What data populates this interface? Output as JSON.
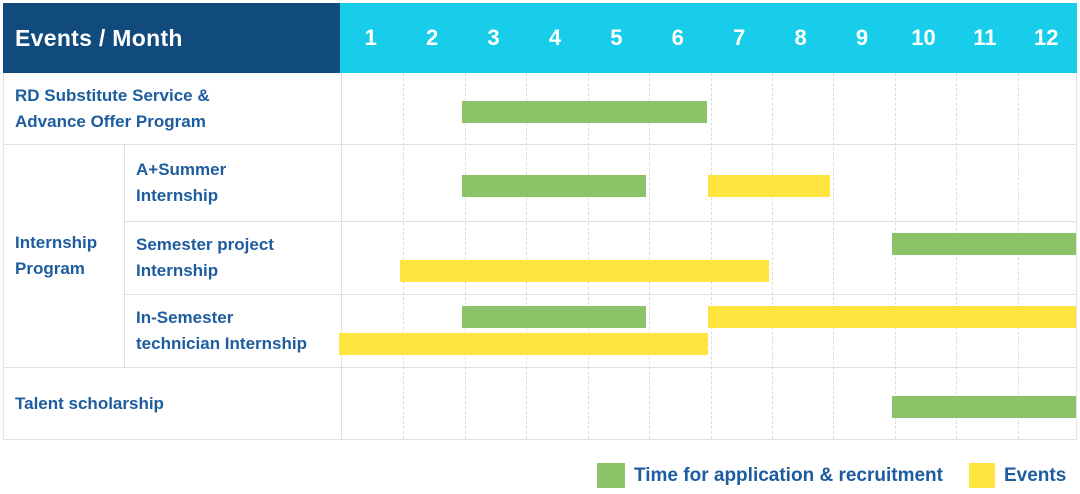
{
  "header": {
    "title": "Events / Month",
    "months": [
      "1",
      "2",
      "3",
      "4",
      "5",
      "6",
      "7",
      "8",
      "9",
      "10",
      "11",
      "12"
    ]
  },
  "colors": {
    "header_navy": "#114a7c",
    "header_cyan": "#17cde9",
    "label_blue": "#1d5c9e",
    "grid_line": "#dcdcdc",
    "bar": {
      "recruitment": "#8cc368",
      "event": "#ffe33f"
    }
  },
  "chart_data": {
    "type": "gantt",
    "x_unit": "month",
    "x_range": [
      1,
      12
    ],
    "group": {
      "label": "Internship Program",
      "label_lines": [
        "Internship",
        "Program"
      ]
    },
    "rows": [
      {
        "label": "RD Substitute Service & Advance Offer Program",
        "label_lines": [
          "RD Substitute Service &",
          "Advance Offer Program"
        ],
        "group": null,
        "bars": [
          {
            "type": "recruitment",
            "start": 3,
            "end": 6,
            "line": "single"
          }
        ]
      },
      {
        "label": "A+Summer Internship",
        "label_lines": [
          "A+Summer",
          "Internship"
        ],
        "group": "Internship Program",
        "bars": [
          {
            "type": "recruitment",
            "start": 3,
            "end": 5,
            "line": "single"
          },
          {
            "type": "event",
            "start": 7,
            "end": 8,
            "line": "single"
          }
        ]
      },
      {
        "label": "Semester project Internship",
        "label_lines": [
          "Semester project",
          "Internship"
        ],
        "group": "Internship Program",
        "bars": [
          {
            "type": "recruitment",
            "start": 10,
            "end": 12,
            "line": "top"
          },
          {
            "type": "event",
            "start": 2,
            "end": 7,
            "line": "bottom"
          }
        ]
      },
      {
        "label": "In-Semester technician Internship",
        "label_lines": [
          "In-Semester",
          "technician Internship"
        ],
        "group": "Internship Program",
        "bars": [
          {
            "type": "recruitment",
            "start": 3,
            "end": 5,
            "line": "top"
          },
          {
            "type": "event",
            "start": 7,
            "end": 12,
            "line": "top"
          },
          {
            "type": "event",
            "start": 1,
            "end": 6,
            "line": "bottom"
          }
        ]
      },
      {
        "label": "Talent scholarship",
        "label_lines": [
          "Talent scholarship"
        ],
        "group": null,
        "bars": [
          {
            "type": "recruitment",
            "start": 10,
            "end": 12,
            "line": "single"
          }
        ]
      }
    ]
  },
  "legend": {
    "items": [
      {
        "key": "recruitment",
        "label": "Time for application & recruitment",
        "color": "#8cc368"
      },
      {
        "key": "event",
        "label": "Events",
        "color": "#ffe33f"
      }
    ]
  }
}
